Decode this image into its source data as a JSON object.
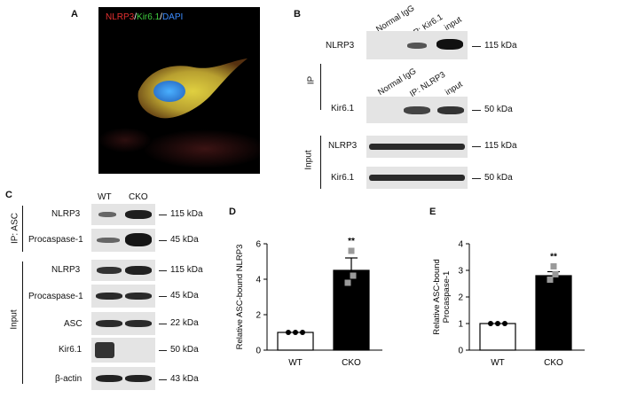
{
  "panel_a": {
    "letter": "A",
    "legend": {
      "nlrp3": "NLRP3",
      "sep1": "/",
      "kir": "Kir6.1",
      "sep2": "/",
      "dapi": "DAPI"
    },
    "colors": {
      "nlrp3": "#e53030",
      "kir": "#3fcf3f",
      "dapi": "#3c8cff"
    }
  },
  "panel_b": {
    "letter": "B",
    "ip_label": "IP",
    "input_label": "Input",
    "top_lanes": [
      "Normal IgG",
      "IP: Kir6.1",
      "input"
    ],
    "mid_lanes": [
      "Normal IgG",
      "IP: NLRP3",
      "input"
    ],
    "rows": [
      {
        "name": "NLRP3",
        "kda": "115 kDa"
      },
      {
        "name": "Kir6.1",
        "kda": "50 kDa"
      },
      {
        "name": "NLRP3",
        "kda": "115 kDa"
      },
      {
        "name": "Kir6.1",
        "kda": "50 kDa"
      }
    ]
  },
  "panel_c": {
    "letter": "C",
    "lanes": [
      "WT",
      "CKO"
    ],
    "ip_label": "IP: ASC",
    "input_label": "Input",
    "rows": [
      {
        "name": "NLRP3",
        "kda": "115 kDa"
      },
      {
        "name": "Procaspase-1",
        "kda": "45 kDa"
      },
      {
        "name": "NLRP3",
        "kda": "115 kDa"
      },
      {
        "name": "Procaspase-1",
        "kda": "45 kDa"
      },
      {
        "name": "ASC",
        "kda": "22 kDa"
      },
      {
        "name": "Kir6.1",
        "kda": "50 kDa"
      },
      {
        "name": "β-actin",
        "kda": "43 kDa"
      }
    ]
  },
  "chart_data": [
    {
      "panel": "D",
      "type": "bar",
      "categories": [
        "WT",
        "CKO"
      ],
      "values": [
        1.0,
        4.5
      ],
      "errors": [
        0.0,
        0.7
      ],
      "points": [
        [
          1.0,
          1.0,
          1.0
        ],
        [
          3.8,
          4.2,
          5.6
        ]
      ],
      "bar_colors": [
        "#ffffff",
        "#000000"
      ],
      "ylabel": "Relative ASC-bound NLRP3",
      "ylim": [
        0,
        6
      ],
      "yticks": [
        "0",
        "2",
        "4",
        "6"
      ],
      "significance": "**"
    },
    {
      "panel": "E",
      "type": "bar",
      "categories": [
        "WT",
        "CKO"
      ],
      "values": [
        1.0,
        2.8
      ],
      "errors": [
        0.0,
        0.15
      ],
      "points": [
        [
          1.0,
          1.0,
          1.0
        ],
        [
          2.65,
          2.85,
          3.15
        ]
      ],
      "bar_colors": [
        "#ffffff",
        "#000000"
      ],
      "ylabel": "Relative ASC-bound Procaspase-1",
      "ylim": [
        0,
        4
      ],
      "yticks": [
        "0",
        "1",
        "2",
        "3",
        "4"
      ],
      "significance": "**"
    }
  ]
}
